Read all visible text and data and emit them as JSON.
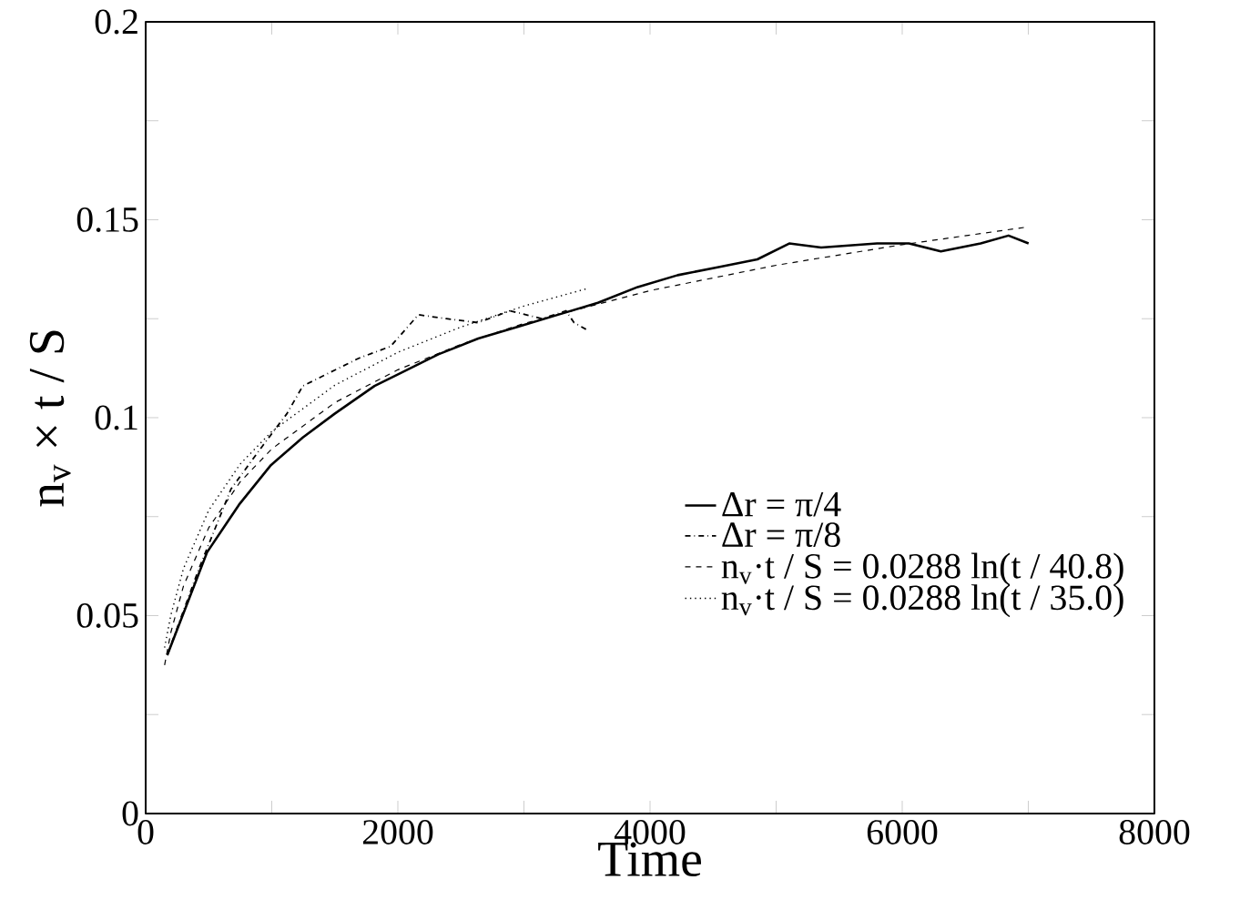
{
  "chart_data": {
    "type": "line",
    "xlabel": "Time",
    "ylabel": "n$_{v}$ × t / S",
    "xlim": [
      0,
      8000
    ],
    "ylim": [
      0,
      0.2
    ],
    "xticks": [
      0,
      {
        "value": 1000,
        "label": null
      },
      2000,
      {
        "value": 3000,
        "label": null
      },
      4000,
      {
        "value": 5000,
        "label": null
      },
      6000,
      {
        "value": 7000,
        "label": null
      },
      8000
    ],
    "yticks": [
      0,
      {
        "value": 0.025,
        "label": null
      },
      0.05,
      {
        "value": 0.075,
        "label": null
      },
      0.1,
      {
        "value": 0.125,
        "label": null
      },
      0.15,
      {
        "value": 0.175,
        "label": null
      },
      0.2
    ],
    "legend": "right",
    "grid": false,
    "series": [
      {
        "name": "Δr = π/4",
        "color": "#000000",
        "line_style": "solid",
        "x": [
          171,
          487,
          740,
          993,
          1246,
          1499,
          1815,
          2005,
          2321,
          2637,
          2954,
          3270,
          3586,
          3902,
          4219,
          4535,
          4851,
          5104,
          5357,
          5800,
          6053,
          6306,
          6622,
          6843,
          7002
        ],
        "values": [
          0.04,
          0.066,
          0.078,
          0.088,
          0.095,
          0.101,
          0.108,
          0.111,
          0.116,
          0.12,
          0.123,
          0.126,
          0.129,
          0.133,
          0.136,
          0.138,
          0.14,
          0.144,
          0.143,
          0.144,
          0.144,
          0.142,
          0.144,
          0.146,
          0.144
        ]
      },
      {
        "name": "Δr = π/8",
        "color": "#000000",
        "line_style": "dashdotted",
        "x": [
          171,
          424,
          677,
          930,
          1120,
          1246,
          1499,
          1689,
          1942,
          2163,
          2384,
          2637,
          2890,
          3143,
          3333,
          3397,
          3510
        ],
        "values": [
          0.04,
          0.062,
          0.082,
          0.093,
          0.101,
          0.108,
          0.112,
          0.115,
          0.118,
          0.126,
          0.125,
          0.124,
          0.127,
          0.125,
          0.127,
          0.124,
          0.122
        ]
      },
      {
        "name": "n$_{v}$·t / S = 0.0288 ln(t / 40.8)",
        "color": "#000000",
        "line_style": "dashed",
        "x": [
          150,
          200,
          300,
          500,
          750,
          1000,
          1500,
          2000,
          2500,
          3000,
          4000,
          5000,
          6000,
          7000
        ],
        "values": [
          0.0375,
          0.0458,
          0.0575,
          0.0722,
          0.0838,
          0.0921,
          0.1038,
          0.1121,
          0.1185,
          0.1238,
          0.1321,
          0.1385,
          0.1437,
          0.1482
        ]
      },
      {
        "name": "n$_{v}$·t / S = 0.0288 ln(t / 35.0)",
        "color": "#000000",
        "line_style": "dotted",
        "x": [
          150,
          200,
          300,
          500,
          750,
          1000,
          1500,
          2000,
          2500,
          3000,
          3500
        ],
        "values": [
          0.0419,
          0.0502,
          0.0619,
          0.0766,
          0.0883,
          0.0965,
          0.1082,
          0.1165,
          0.1229,
          0.1282,
          0.1326
        ]
      }
    ]
  }
}
